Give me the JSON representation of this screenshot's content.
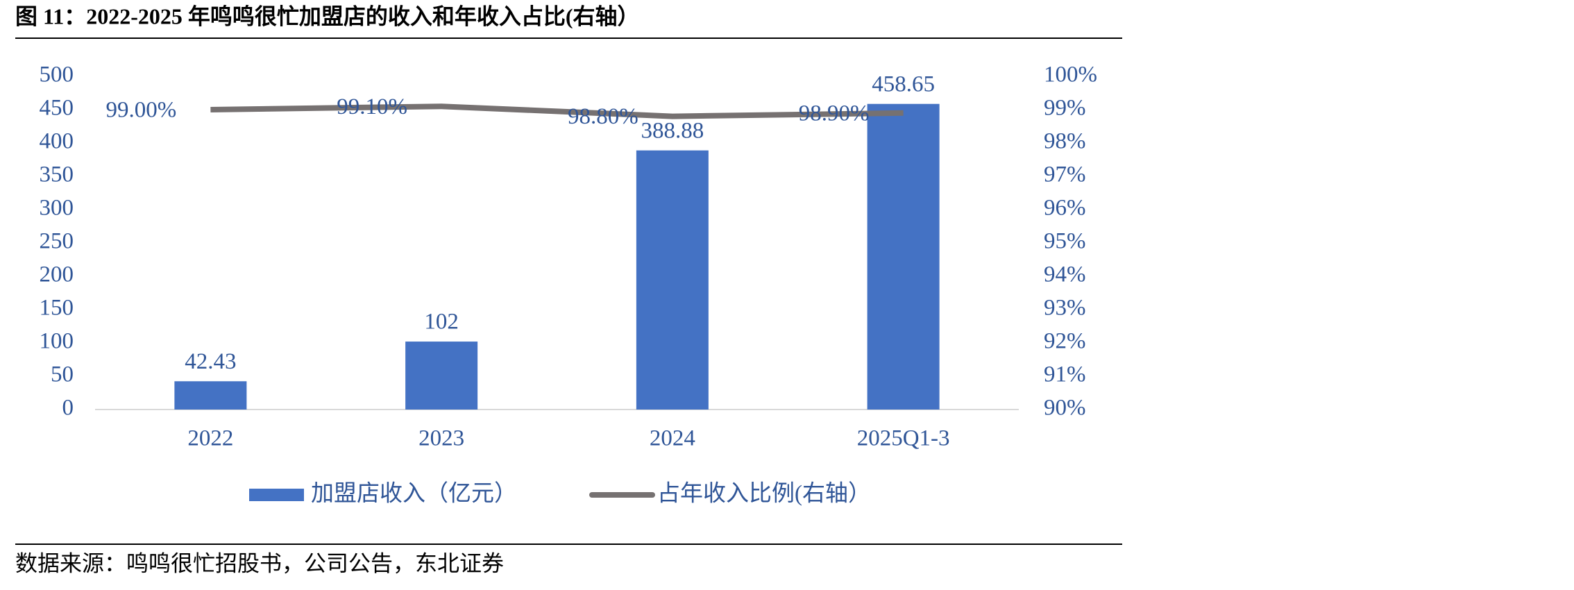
{
  "chart_data": {
    "type": "bar-line",
    "title": "图 11：2022-2025 年鸣鸣很忙加盟店的收入和年收入占比(右轴）",
    "categories": [
      "2022",
      "2023",
      "2024",
      "2025Q1-3"
    ],
    "series": [
      {
        "name": "加盟店收入（亿元）",
        "type": "bar",
        "color": "#4472c4",
        "values": [
          42.43,
          102,
          388.88,
          458.65
        ]
      },
      {
        "name": "占年收入比例(右轴）",
        "type": "line",
        "axis": "y2",
        "color": "#767171",
        "values": [
          99.0,
          99.1,
          98.8,
          98.9
        ],
        "value_labels": [
          "99.00%",
          "99.10%",
          "98.80%",
          "98.90%"
        ]
      }
    ],
    "ylim": [
      0,
      500
    ],
    "yticks": [
      0,
      50,
      100,
      150,
      200,
      250,
      300,
      350,
      400,
      450,
      500
    ],
    "y2lim": [
      90,
      100
    ],
    "y2ticks": [
      {
        "value": 90,
        "label": "90%"
      },
      {
        "value": 91,
        "label": "91%"
      },
      {
        "value": 92,
        "label": "92%"
      },
      {
        "value": 93,
        "label": "93%"
      },
      {
        "value": 94,
        "label": "94%"
      },
      {
        "value": 95,
        "label": "95%"
      },
      {
        "value": 96,
        "label": "96%"
      },
      {
        "value": 97,
        "label": "97%"
      },
      {
        "value": 98,
        "label": "98%"
      },
      {
        "value": 99,
        "label": "99%"
      },
      {
        "value": 100,
        "label": "100%"
      }
    ],
    "legend": "bottom",
    "source": "数据来源：鸣鸣很忙招股书，公司公告，东北证券"
  }
}
